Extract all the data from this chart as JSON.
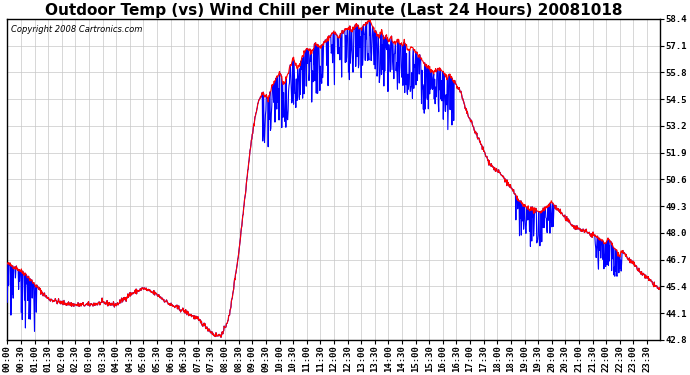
{
  "title": "Outdoor Temp (vs) Wind Chill per Minute (Last 24 Hours) 20081018",
  "copyright": "Copyright 2008 Cartronics.com",
  "background_color": "#ffffff",
  "plot_background": "#ffffff",
  "grid_color": "#c8c8c8",
  "temp_color": "#ff0000",
  "windchill_color": "#0000ff",
  "ylim": [
    42.8,
    58.4
  ],
  "yticks": [
    42.8,
    44.1,
    45.4,
    46.7,
    48.0,
    49.3,
    50.6,
    51.9,
    53.2,
    54.5,
    55.8,
    57.1,
    58.4
  ],
  "xtick_interval": 30,
  "total_minutes": 1440,
  "title_fontsize": 11,
  "copyright_fontsize": 6,
  "tick_fontsize": 6.5
}
